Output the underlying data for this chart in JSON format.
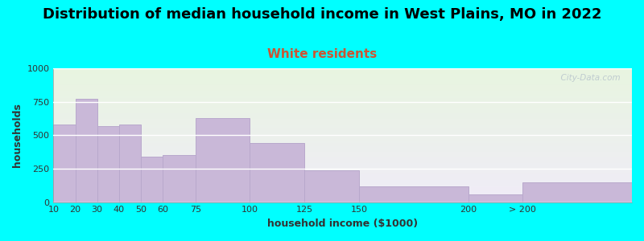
{
  "title": "Distribution of median household income in West Plains, MO in 2022",
  "subtitle": "White residents",
  "xlabel": "household income ($1000)",
  "ylabel": "households",
  "bar_left_edges": [
    10,
    20,
    30,
    40,
    50,
    60,
    75,
    100,
    125,
    150,
    200,
    225
  ],
  "bar_right_edges": [
    20,
    30,
    40,
    50,
    60,
    75,
    100,
    125,
    150,
    200,
    225,
    275
  ],
  "bar_values": [
    580,
    770,
    570,
    580,
    340,
    350,
    630,
    440,
    240,
    120,
    60,
    150
  ],
  "x_tick_positions": [
    10,
    20,
    30,
    40,
    50,
    60,
    75,
    100,
    125,
    150,
    200,
    225
  ],
  "x_tick_labels": [
    "10",
    "20",
    "30",
    "40",
    "50",
    "60",
    "75",
    "100",
    "125",
    "150",
    "200",
    "> 200"
  ],
  "bar_color": "#c9b8d8",
  "bar_edgecolor": "#b8a8cc",
  "ylim": [
    0,
    1000
  ],
  "yticks": [
    0,
    250,
    500,
    750,
    1000
  ],
  "bg_outer": "#00ffff",
  "bg_plot_top_color": "#e8f5e0",
  "bg_plot_bottom_color": "#f0ecf8",
  "title_fontsize": 13,
  "subtitle_fontsize": 11,
  "subtitle_color": "#cc5533",
  "watermark": "  City-Data.com",
  "watermark_color": "#b8c4cc"
}
